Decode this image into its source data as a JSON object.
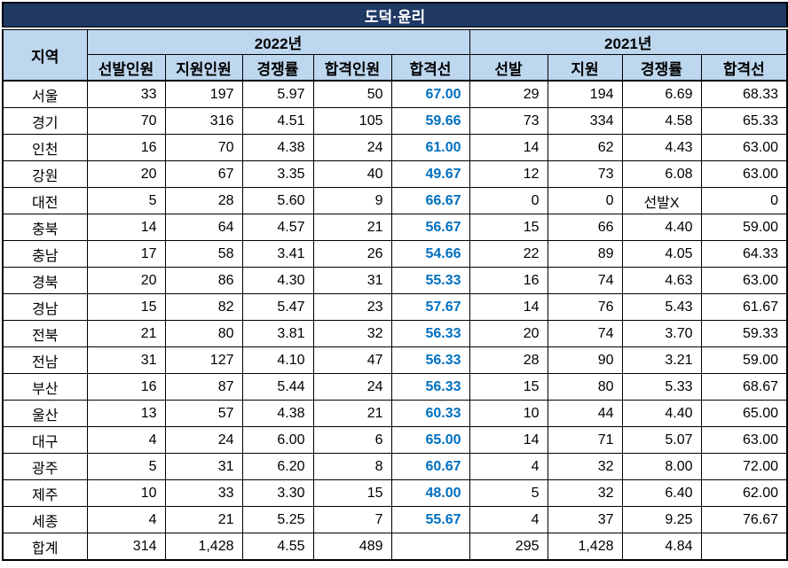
{
  "title": "도덕·윤리",
  "colors": {
    "title_bg": "#1F3864",
    "title_text": "#FFFFFF",
    "header_bg": "#BDD7EE",
    "cutoff_text": "#0070C0",
    "border": "#000000"
  },
  "table": {
    "region_header": "지역",
    "year_2022": "2022년",
    "year_2021": "2021년",
    "columns_2022": [
      "선발인원",
      "지원인원",
      "경쟁률",
      "합격인원",
      "합격선"
    ],
    "columns_2021": [
      "선발",
      "지원",
      "경쟁률",
      "합격선"
    ],
    "rows": [
      {
        "region": "서울",
        "y2022": [
          "33",
          "197",
          "5.97",
          "50",
          "67.00"
        ],
        "y2021": [
          "29",
          "194",
          "6.69",
          "68.33"
        ]
      },
      {
        "region": "경기",
        "y2022": [
          "70",
          "316",
          "4.51",
          "105",
          "59.66"
        ],
        "y2021": [
          "73",
          "334",
          "4.58",
          "65.33"
        ]
      },
      {
        "region": "인천",
        "y2022": [
          "16",
          "70",
          "4.38",
          "24",
          "61.00"
        ],
        "y2021": [
          "14",
          "62",
          "4.43",
          "63.00"
        ]
      },
      {
        "region": "강원",
        "y2022": [
          "20",
          "67",
          "3.35",
          "40",
          "49.67"
        ],
        "y2021": [
          "12",
          "73",
          "6.08",
          "63.00"
        ]
      },
      {
        "region": "대전",
        "y2022": [
          "5",
          "28",
          "5.60",
          "9",
          "66.67"
        ],
        "y2021": [
          "0",
          "0",
          "선발X",
          "0"
        ]
      },
      {
        "region": "충북",
        "y2022": [
          "14",
          "64",
          "4.57",
          "21",
          "56.67"
        ],
        "y2021": [
          "15",
          "66",
          "4.40",
          "59.00"
        ]
      },
      {
        "region": "충남",
        "y2022": [
          "17",
          "58",
          "3.41",
          "26",
          "54.66"
        ],
        "y2021": [
          "22",
          "89",
          "4.05",
          "64.33"
        ]
      },
      {
        "region": "경북",
        "y2022": [
          "20",
          "86",
          "4.30",
          "31",
          "55.33"
        ],
        "y2021": [
          "16",
          "74",
          "4.63",
          "63.00"
        ]
      },
      {
        "region": "경남",
        "y2022": [
          "15",
          "82",
          "5.47",
          "23",
          "57.67"
        ],
        "y2021": [
          "14",
          "76",
          "5.43",
          "61.67"
        ]
      },
      {
        "region": "전북",
        "y2022": [
          "21",
          "80",
          "3.81",
          "32",
          "56.33"
        ],
        "y2021": [
          "20",
          "74",
          "3.70",
          "59.33"
        ]
      },
      {
        "region": "전남",
        "y2022": [
          "31",
          "127",
          "4.10",
          "47",
          "56.33"
        ],
        "y2021": [
          "28",
          "90",
          "3.21",
          "59.00"
        ]
      },
      {
        "region": "부산",
        "y2022": [
          "16",
          "87",
          "5.44",
          "24",
          "56.33"
        ],
        "y2021": [
          "15",
          "80",
          "5.33",
          "68.67"
        ]
      },
      {
        "region": "울산",
        "y2022": [
          "13",
          "57",
          "4.38",
          "21",
          "60.33"
        ],
        "y2021": [
          "10",
          "44",
          "4.40",
          "65.00"
        ]
      },
      {
        "region": "대구",
        "y2022": [
          "4",
          "24",
          "6.00",
          "6",
          "65.00"
        ],
        "y2021": [
          "14",
          "71",
          "5.07",
          "63.00"
        ]
      },
      {
        "region": "광주",
        "y2022": [
          "5",
          "31",
          "6.20",
          "8",
          "60.67"
        ],
        "y2021": [
          "4",
          "32",
          "8.00",
          "72.00"
        ]
      },
      {
        "region": "제주",
        "y2022": [
          "10",
          "33",
          "3.30",
          "15",
          "48.00"
        ],
        "y2021": [
          "5",
          "32",
          "6.40",
          "62.00"
        ]
      },
      {
        "region": "세종",
        "y2022": [
          "4",
          "21",
          "5.25",
          "7",
          "55.67"
        ],
        "y2021": [
          "4",
          "37",
          "9.25",
          "76.67"
        ]
      },
      {
        "region": "합계",
        "y2022": [
          "314",
          "1,428",
          "4.55",
          "489",
          ""
        ],
        "y2021": [
          "295",
          "1,428",
          "4.84",
          ""
        ]
      }
    ]
  }
}
